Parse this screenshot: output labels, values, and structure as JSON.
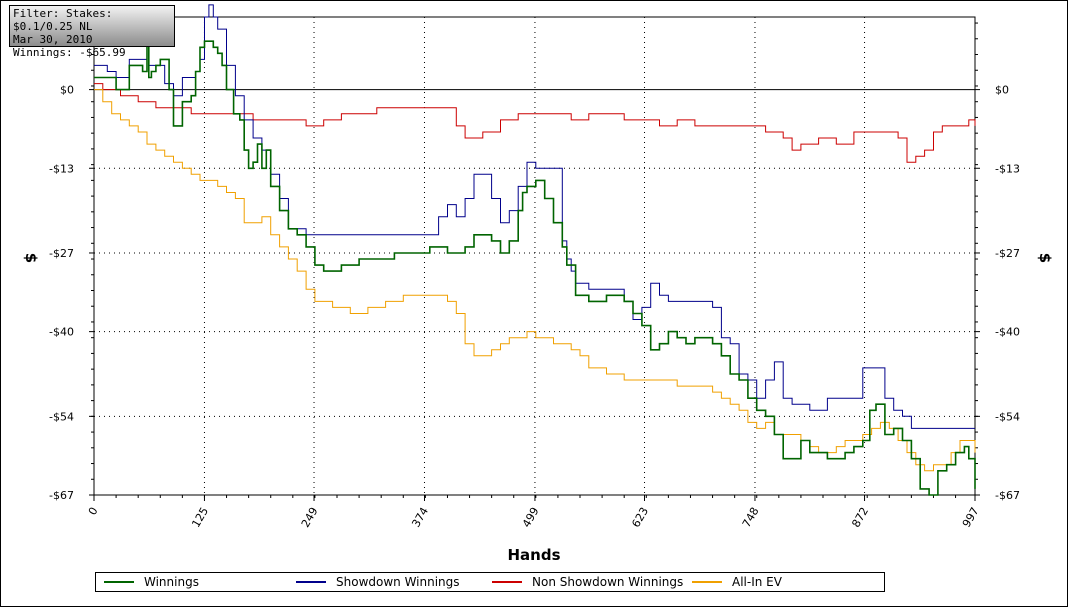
{
  "infobox": {
    "filter": "Filter: Stakes: $0.1/0.25 NL",
    "date": "Mar 30, 2010",
    "winnings": "Winnings: -$65.99"
  },
  "colors": {
    "Winnings": "#006400",
    "Showdown Winnings": "#00008b",
    "Non Showdown Winnings": "#cc0000",
    "All-In EV": "#f0a000"
  },
  "chart_data": {
    "type": "line",
    "xlabel": "Hands",
    "ylabel": "$",
    "xlim": [
      0,
      997
    ],
    "ylim": [
      -67,
      12
    ],
    "x_ticks": [
      "0",
      "125",
      "249",
      "374",
      "499",
      "623",
      "748",
      "872",
      "997"
    ],
    "y_ticks": [
      "$0",
      "-$13",
      "-$27",
      "-$40",
      "-$54",
      "-$67"
    ],
    "grid": true,
    "legend_position": "bottom",
    "series": [
      {
        "name": "Winnings",
        "x": [
          0,
          10,
          25,
          40,
          55,
          60,
          62,
          65,
          70,
          75,
          85,
          90,
          100,
          110,
          115,
          120,
          125,
          135,
          140,
          145,
          150,
          158,
          165,
          170,
          175,
          180,
          185,
          190,
          195,
          200,
          210,
          220,
          230,
          240,
          250,
          260,
          280,
          300,
          320,
          340,
          360,
          380,
          390,
          400,
          410,
          420,
          430,
          440,
          450,
          460,
          470,
          480,
          485,
          490,
          500,
          510,
          520,
          530,
          535,
          545,
          560,
          580,
          600,
          610,
          620,
          630,
          640,
          650,
          660,
          670,
          680,
          690,
          700,
          710,
          720,
          730,
          740,
          750,
          760,
          770,
          780,
          790,
          800,
          810,
          820,
          830,
          840,
          850,
          860,
          870,
          878,
          885,
          895,
          905,
          915,
          925,
          935,
          945,
          955,
          965,
          975,
          985,
          990,
          997
        ],
        "y": [
          2,
          2,
          0,
          4,
          3,
          8,
          2,
          3,
          4,
          5,
          0,
          -6,
          -2,
          -1,
          3,
          7,
          8,
          7,
          6,
          4,
          0,
          -4,
          -5,
          -10,
          -13,
          -12,
          -9,
          -13,
          -10,
          -16,
          -20,
          -23,
          -24,
          -26,
          -29,
          -30,
          -29,
          -28,
          -28,
          -27,
          -27,
          -26,
          -26,
          -27,
          -27,
          -26,
          -24,
          -24,
          -25,
          -27,
          -25,
          -20,
          -17,
          -16,
          -15,
          -18,
          -22,
          -26,
          -29,
          -34,
          -35,
          -34,
          -35,
          -37,
          -39,
          -43,
          -42,
          -40,
          -41,
          -42,
          -41,
          -41,
          -42,
          -44,
          -47,
          -48,
          -51,
          -53,
          -54,
          -57,
          -61,
          -61,
          -58,
          -60,
          -60,
          -61,
          -61,
          -60,
          -59,
          -58,
          -53,
          -52,
          -57,
          -56,
          -58,
          -61,
          -66,
          -67,
          -63,
          -62,
          -60,
          -59,
          -61,
          -66
        ]
      },
      {
        "name": "Showdown Winnings",
        "x": [
          0,
          15,
          25,
          40,
          55,
          60,
          62,
          70,
          80,
          90,
          100,
          115,
          120,
          125,
          130,
          135,
          140,
          150,
          160,
          170,
          180,
          190,
          200,
          210,
          220,
          230,
          240,
          250,
          270,
          290,
          310,
          330,
          350,
          370,
          380,
          390,
          400,
          410,
          420,
          430,
          440,
          450,
          460,
          470,
          480,
          490,
          500,
          510,
          520,
          530,
          535,
          540,
          545,
          560,
          580,
          600,
          610,
          620,
          630,
          640,
          650,
          660,
          680,
          700,
          710,
          720,
          730,
          740,
          750,
          760,
          770,
          780,
          790,
          800,
          810,
          820,
          830,
          840,
          850,
          860,
          870,
          878,
          885,
          895,
          905,
          915,
          925,
          935,
          945,
          955,
          965,
          975,
          985,
          990,
          997
        ],
        "y": [
          4,
          3,
          2,
          5,
          5,
          12,
          4,
          4,
          1,
          -1,
          2,
          3,
          5,
          12,
          14,
          12,
          10,
          4,
          -1,
          -5,
          -8,
          -10,
          -14,
          -18,
          -23,
          -23,
          -24,
          -24,
          -24,
          -24,
          -24,
          -24,
          -24,
          -24,
          -24,
          -21,
          -19,
          -21,
          -18,
          -14,
          -14,
          -18,
          -22,
          -20,
          -16,
          -12,
          -13,
          -13,
          -13,
          -25,
          -28,
          -30,
          -32,
          -33,
          -33,
          -35,
          -38,
          -36,
          -32,
          -34,
          -35,
          -35,
          -35,
          -36,
          -41,
          -42,
          -47,
          -48,
          -51,
          -48,
          -45,
          -51,
          -52,
          -52,
          -53,
          -53,
          -51,
          -51,
          -51,
          -51,
          -46,
          -46,
          -46,
          -51,
          -53,
          -54,
          -56,
          -56,
          -56,
          -56,
          -56,
          -56,
          -56,
          -56,
          -56
        ]
      },
      {
        "name": "Non Showdown Winnings",
        "x": [
          0,
          10,
          20,
          30,
          40,
          50,
          60,
          70,
          80,
          90,
          100,
          110,
          120,
          130,
          140,
          150,
          160,
          170,
          180,
          190,
          200,
          220,
          240,
          260,
          280,
          300,
          320,
          340,
          360,
          380,
          400,
          410,
          420,
          430,
          440,
          460,
          480,
          500,
          520,
          540,
          560,
          580,
          600,
          620,
          640,
          660,
          680,
          700,
          720,
          740,
          760,
          780,
          790,
          800,
          820,
          840,
          860,
          880,
          900,
          910,
          920,
          930,
          940,
          950,
          960,
          970,
          980,
          990,
          997
        ],
        "y": [
          1,
          0,
          0,
          -1,
          -1,
          -2,
          -2,
          -3,
          -3,
          -3,
          -3,
          -4,
          -4,
          -4,
          -4,
          -4,
          -4,
          -4,
          -5,
          -5,
          -5,
          -5,
          -6,
          -5,
          -4,
          -4,
          -3,
          -3,
          -3,
          -3,
          -3,
          -6,
          -8,
          -8,
          -7,
          -5,
          -4,
          -4,
          -4,
          -5,
          -4,
          -4,
          -5,
          -5,
          -6,
          -5,
          -6,
          -6,
          -6,
          -6,
          -7,
          -8,
          -10,
          -9,
          -8,
          -9,
          -7,
          -7,
          -7,
          -8,
          -12,
          -11,
          -10,
          -7,
          -6,
          -6,
          -6,
          -5,
          -6
        ]
      },
      {
        "name": "All-In EV",
        "x": [
          0,
          10,
          20,
          30,
          40,
          50,
          60,
          70,
          80,
          90,
          100,
          110,
          120,
          130,
          140,
          150,
          160,
          170,
          180,
          190,
          200,
          210,
          220,
          230,
          240,
          250,
          270,
          290,
          310,
          330,
          350,
          370,
          390,
          400,
          410,
          420,
          430,
          440,
          450,
          460,
          470,
          480,
          490,
          500,
          510,
          520,
          530,
          540,
          550,
          560,
          580,
          600,
          620,
          640,
          660,
          680,
          700,
          710,
          720,
          730,
          740,
          750,
          760,
          770,
          780,
          790,
          800,
          810,
          820,
          830,
          840,
          850,
          860,
          870,
          880,
          890,
          900,
          910,
          920,
          930,
          940,
          950,
          960,
          970,
          980,
          990,
          997
        ],
        "y": [
          0,
          -2,
          -4,
          -5,
          -6,
          -7,
          -9,
          -10,
          -11,
          -12,
          -13,
          -14,
          -15,
          -15,
          -16,
          -17,
          -18,
          -22,
          -22,
          -21,
          -24,
          -26,
          -28,
          -30,
          -33,
          -35,
          -36,
          -37,
          -36,
          -35,
          -34,
          -34,
          -34,
          -35,
          -37,
          -42,
          -44,
          -44,
          -43,
          -42,
          -41,
          -41,
          -40,
          -41,
          -41,
          -42,
          -42,
          -43,
          -44,
          -46,
          -47,
          -48,
          -48,
          -48,
          -49,
          -49,
          -50,
          -51,
          -52,
          -53,
          -55,
          -56,
          -55,
          -57,
          -57,
          -57,
          -58,
          -59,
          -60,
          -60,
          -59,
          -58,
          -58,
          -57,
          -56,
          -55,
          -56,
          -58,
          -60,
          -62,
          -63,
          -62,
          -62,
          -60,
          -58,
          -58,
          -60
        ]
      }
    ]
  }
}
